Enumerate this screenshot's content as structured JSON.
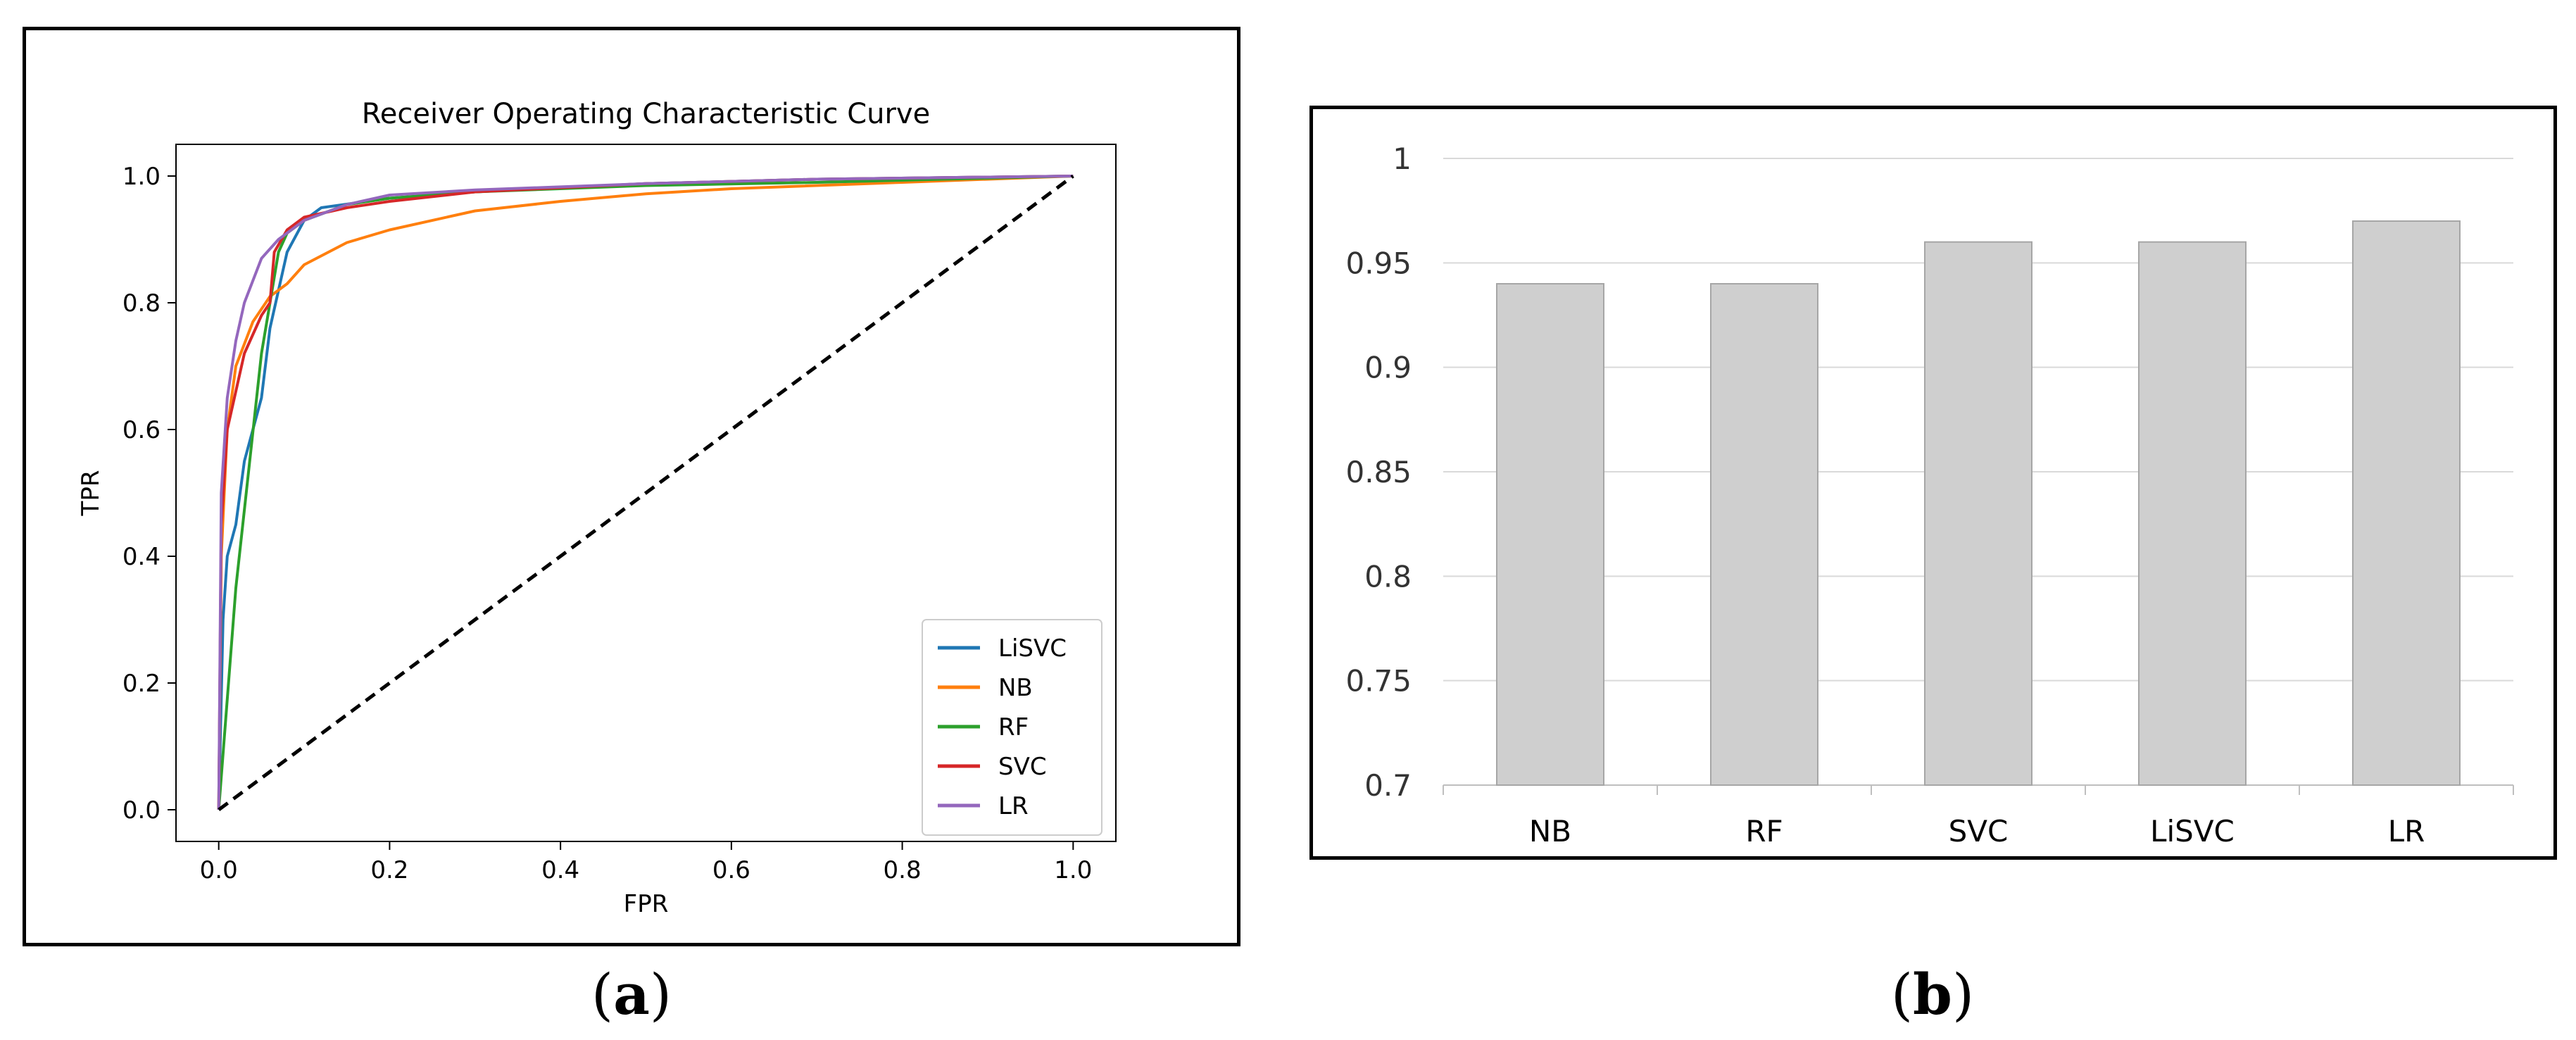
{
  "panel_a": {
    "caption_letter": "a"
  },
  "panel_b": {
    "caption_letter": "b"
  },
  "chart_data": [
    {
      "type": "line",
      "title": "Receiver Operating Characteristic Curve",
      "xlabel": "FPR",
      "ylabel": "TPR",
      "xlim": [
        -0.05,
        1.05
      ],
      "ylim": [
        -0.05,
        1.05
      ],
      "xticks": [
        "0.0",
        "0.2",
        "0.4",
        "0.6",
        "0.8",
        "1.0"
      ],
      "yticks": [
        "0.0",
        "0.2",
        "0.4",
        "0.6",
        "0.8",
        "1.0"
      ],
      "legend_position": "lower-right",
      "grid": false,
      "series": [
        {
          "name": "LiSVC",
          "color": "#1f77b4",
          "x": [
            0,
            0.005,
            0.01,
            0.02,
            0.03,
            0.05,
            0.06,
            0.08,
            0.1,
            0.12,
            0.2,
            0.3,
            0.5,
            0.7,
            1.0
          ],
          "y": [
            0,
            0.3,
            0.4,
            0.45,
            0.55,
            0.65,
            0.76,
            0.88,
            0.93,
            0.95,
            0.965,
            0.975,
            0.988,
            0.995,
            1.0
          ]
        },
        {
          "name": "NB",
          "color": "#ff7f0e",
          "x": [
            0,
            0.003,
            0.01,
            0.02,
            0.04,
            0.06,
            0.08,
            0.1,
            0.15,
            0.2,
            0.3,
            0.4,
            0.5,
            0.6,
            0.8,
            1.0
          ],
          "y": [
            0,
            0.4,
            0.6,
            0.7,
            0.77,
            0.81,
            0.83,
            0.86,
            0.895,
            0.915,
            0.945,
            0.96,
            0.972,
            0.98,
            0.99,
            1.0
          ]
        },
        {
          "name": "RF",
          "color": "#2ca02c",
          "x": [
            0,
            0.02,
            0.05,
            0.07,
            0.08,
            0.1,
            0.15,
            0.2,
            0.3,
            0.5,
            0.7,
            1.0
          ],
          "y": [
            0,
            0.35,
            0.72,
            0.88,
            0.91,
            0.93,
            0.955,
            0.965,
            0.975,
            0.985,
            0.99,
            1.0
          ]
        },
        {
          "name": "SVC",
          "color": "#d62728",
          "x": [
            0,
            0.003,
            0.01,
            0.03,
            0.05,
            0.06,
            0.065,
            0.08,
            0.1,
            0.15,
            0.2,
            0.3,
            0.5,
            0.7,
            1.0
          ],
          "y": [
            0,
            0.45,
            0.6,
            0.72,
            0.78,
            0.8,
            0.88,
            0.915,
            0.935,
            0.95,
            0.96,
            0.975,
            0.988,
            0.995,
            1.0
          ]
        },
        {
          "name": "LR",
          "color": "#9467bd",
          "x": [
            0,
            0.003,
            0.01,
            0.02,
            0.03,
            0.05,
            0.07,
            0.1,
            0.15,
            0.2,
            0.3,
            0.5,
            0.7,
            1.0
          ],
          "y": [
            0,
            0.5,
            0.65,
            0.74,
            0.8,
            0.87,
            0.9,
            0.93,
            0.955,
            0.97,
            0.978,
            0.988,
            0.995,
            1.0
          ]
        },
        {
          "name": "",
          "color": "#000000",
          "dashed": true,
          "x": [
            0,
            1.0
          ],
          "y": [
            0,
            1.0
          ]
        }
      ]
    },
    {
      "type": "bar",
      "title": "",
      "categories": [
        "NB",
        "RF",
        "SVC",
        "LiSVC",
        "LR"
      ],
      "values": [
        0.94,
        0.94,
        0.96,
        0.96,
        0.97
      ],
      "ylim": [
        0.7,
        1.0
      ],
      "yticks": [
        "0.7",
        "0.75",
        "0.8",
        "0.85",
        "0.9",
        "0.95",
        "1"
      ],
      "grid": true,
      "bar_color": "#cfcfcf"
    }
  ]
}
